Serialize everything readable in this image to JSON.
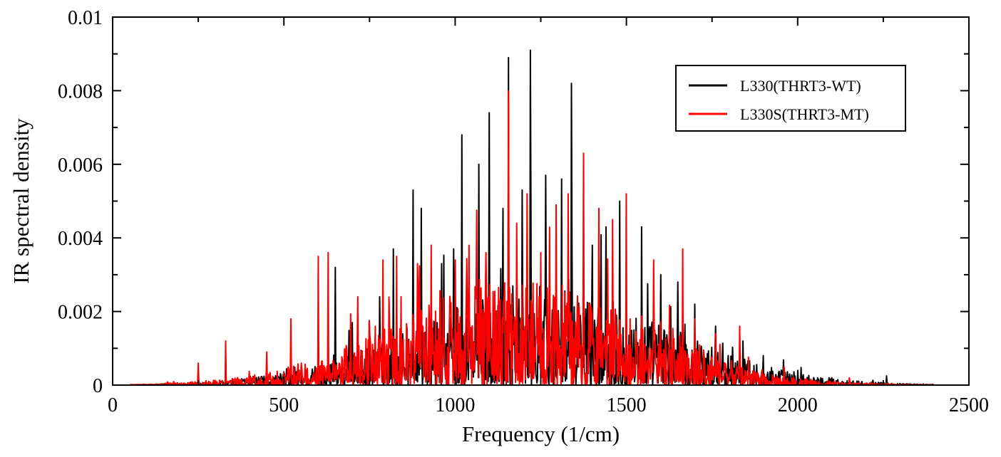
{
  "chart_data": {
    "type": "line",
    "title": "",
    "xlabel": "Frequency (1/cm)",
    "ylabel": "IR spectral density",
    "xlim": [
      0,
      2500
    ],
    "ylim": [
      0,
      0.01
    ],
    "x_ticks": [
      0,
      500,
      1000,
      1500,
      2000,
      2500
    ],
    "x_tick_labels": [
      "0",
      "500",
      "1000",
      "1500",
      "2000",
      "2500"
    ],
    "y_ticks": [
      0,
      0.002,
      0.004,
      0.006,
      0.008,
      0.01
    ],
    "y_tick_labels": [
      "0",
      "0.002",
      "0.004",
      "0.006",
      "0.008",
      "0.01"
    ],
    "grid": false,
    "legend_position": "top-right",
    "series": [
      {
        "name": "L330(THRT3-WT)",
        "color": "#000000",
        "peaks": [
          [
            650,
            0.0032
          ],
          [
            700,
            0.0017
          ],
          [
            780,
            0.0024
          ],
          [
            820,
            0.0037
          ],
          [
            878,
            0.0053
          ],
          [
            902,
            0.0048
          ],
          [
            960,
            0.0033
          ],
          [
            995,
            0.0037
          ],
          [
            1020,
            0.0068
          ],
          [
            1070,
            0.006
          ],
          [
            1100,
            0.0074
          ],
          [
            1140,
            0.0048
          ],
          [
            1155,
            0.0089
          ],
          [
            1195,
            0.0053
          ],
          [
            1220,
            0.0091
          ],
          [
            1265,
            0.0057
          ],
          [
            1310,
            0.0056
          ],
          [
            1340,
            0.0082
          ],
          [
            1400,
            0.0038
          ],
          [
            1440,
            0.0043
          ],
          [
            1480,
            0.005
          ],
          [
            1545,
            0.0043
          ],
          [
            1600,
            0.003
          ],
          [
            1650,
            0.0028
          ],
          [
            1700,
            0.0022
          ],
          [
            1760,
            0.0016
          ],
          [
            1840,
            0.0012
          ],
          [
            1900,
            0.0008
          ],
          [
            2000,
            0.0004
          ],
          [
            2100,
            0.0002
          ],
          [
            2260,
            0.00025
          ]
        ]
      },
      {
        "name": "L330S(THRT3-MT)",
        "color": "#ff0000",
        "peaks": [
          [
            250,
            0.0006
          ],
          [
            330,
            0.0012
          ],
          [
            450,
            0.0009
          ],
          [
            520,
            0.0018
          ],
          [
            600,
            0.0035
          ],
          [
            630,
            0.0036
          ],
          [
            715,
            0.0024
          ],
          [
            790,
            0.0034
          ],
          [
            830,
            0.0035
          ],
          [
            890,
            0.0033
          ],
          [
            930,
            0.0038
          ],
          [
            1000,
            0.0034
          ],
          [
            1040,
            0.0038
          ],
          [
            1090,
            0.0036
          ],
          [
            1155,
            0.008
          ],
          [
            1180,
            0.0044
          ],
          [
            1210,
            0.0052
          ],
          [
            1250,
            0.0036
          ],
          [
            1295,
            0.0049
          ],
          [
            1330,
            0.0052
          ],
          [
            1375,
            0.0063
          ],
          [
            1420,
            0.0048
          ],
          [
            1460,
            0.0045
          ],
          [
            1500,
            0.0052
          ],
          [
            1580,
            0.0034
          ],
          [
            1665,
            0.0037
          ],
          [
            1700,
            0.0018
          ],
          [
            1760,
            0.0014
          ],
          [
            1830,
            0.0016
          ],
          [
            1960,
            0.0005
          ],
          [
            2150,
            0.0002
          ]
        ]
      }
    ]
  }
}
